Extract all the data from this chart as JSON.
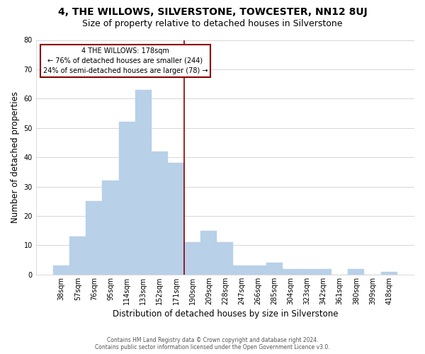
{
  "title": "4, THE WILLOWS, SILVERSTONE, TOWCESTER, NN12 8UJ",
  "subtitle": "Size of property relative to detached houses in Silverstone",
  "xlabel": "Distribution of detached houses by size in Silverstone",
  "ylabel": "Number of detached properties",
  "bin_labels": [
    "38sqm",
    "57sqm",
    "76sqm",
    "95sqm",
    "114sqm",
    "133sqm",
    "152sqm",
    "171sqm",
    "190sqm",
    "209sqm",
    "228sqm",
    "247sqm",
    "266sqm",
    "285sqm",
    "304sqm",
    "323sqm",
    "342sqm",
    "361sqm",
    "380sqm",
    "399sqm",
    "418sqm"
  ],
  "bar_heights": [
    3,
    13,
    25,
    32,
    52,
    63,
    42,
    38,
    11,
    15,
    11,
    3,
    3,
    4,
    2,
    2,
    2,
    0,
    2,
    0,
    1
  ],
  "bar_color": "#b8d0e8",
  "vline_x": 7.5,
  "vline_color": "#8b0000",
  "annotation_text_line1": "4 THE WILLOWS: 178sqm",
  "annotation_text_line2": "← 76% of detached houses are smaller (244)",
  "annotation_text_line3": "24% of semi-detached houses are larger (78) →",
  "ylim": [
    0,
    80
  ],
  "yticks": [
    0,
    10,
    20,
    30,
    40,
    50,
    60,
    70,
    80
  ],
  "footer_line1": "Contains HM Land Registry data © Crown copyright and database right 2024.",
  "footer_line2": "Contains public sector information licensed under the Open Government Licence v3.0.",
  "background_color": "#ffffff",
  "grid_color": "#d0d0d0",
  "title_fontsize": 10,
  "subtitle_fontsize": 9,
  "axis_label_fontsize": 8.5,
  "tick_fontsize": 7,
  "footer_fontsize": 5.5
}
